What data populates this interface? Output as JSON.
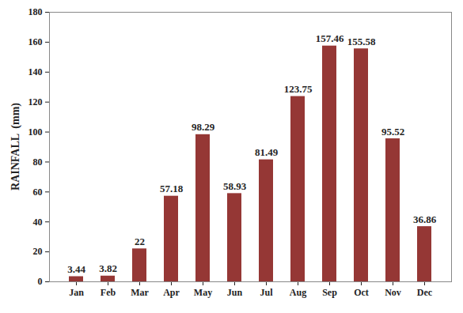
{
  "chart_data": {
    "type": "bar",
    "ylabel": "RAINFALL  (mm)",
    "categories": [
      "Jan",
      "Feb",
      "Mar",
      "Apr",
      "May",
      "Jun",
      "Jul",
      "Aug",
      "Sep",
      "Oct",
      "Nov",
      "Dec"
    ],
    "values": [
      3.44,
      3.82,
      22,
      57.18,
      98.29,
      58.93,
      81.49,
      123.75,
      157.46,
      155.58,
      95.52,
      36.86
    ],
    "color": "#953735",
    "ylim": [
      0,
      180
    ],
    "yticks": [
      0,
      20,
      40,
      60,
      80,
      100,
      120,
      140,
      160,
      180
    ],
    "grid": false,
    "data_labels": true
  }
}
